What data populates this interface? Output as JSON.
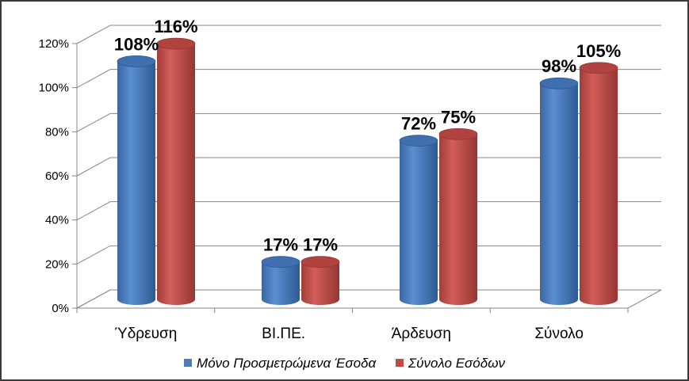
{
  "chart_data": {
    "type": "bar",
    "style": "3d-cylinder",
    "categories": [
      "Ύδρευση",
      "ΒΙ.ΠΕ.",
      "Άρδευση",
      "Σύνολο"
    ],
    "series": [
      {
        "name": "Μόνο Προσμετρώμενα Έσοδα",
        "color": "#4a7ebb",
        "values": [
          108,
          17,
          72,
          98
        ],
        "labels": [
          "108%",
          "17%",
          "72%",
          "98%"
        ]
      },
      {
        "name": "Σύνολο Εσόδων",
        "color": "#be4b48",
        "values": [
          116,
          17,
          75,
          105
        ],
        "labels": [
          "116%",
          "17%",
          "75%",
          "105%"
        ]
      }
    ],
    "title": "",
    "xlabel": "",
    "ylabel": "",
    "ylim": [
      0,
      120
    ],
    "yticks": [
      0,
      20,
      40,
      60,
      80,
      100,
      120
    ],
    "ytick_labels": [
      "0%",
      "20%",
      "40%",
      "60%",
      "80%",
      "100%",
      "120%"
    ],
    "grid": true,
    "legend_position": "bottom"
  }
}
